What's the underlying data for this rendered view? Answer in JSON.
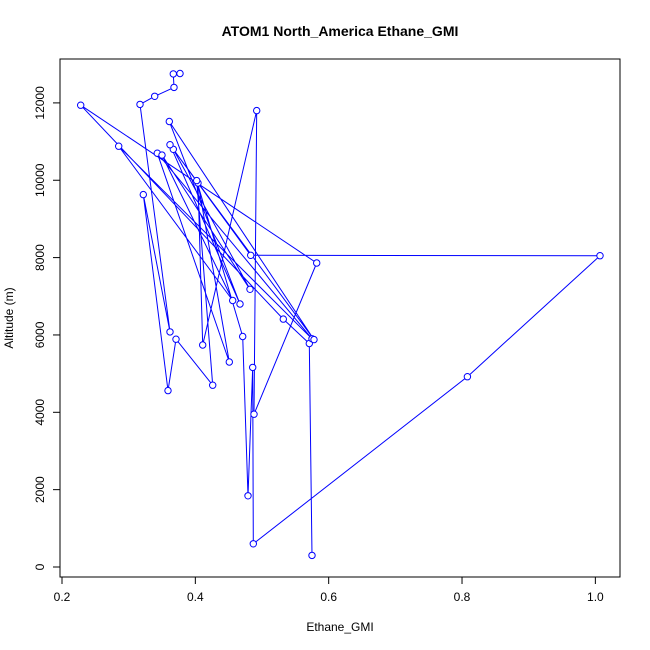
{
  "chart_data": {
    "type": "line",
    "title": "ATOM1 North_America Ethane_GMI",
    "xlabel": "Ethane_GMI",
    "ylabel": "Altitude (m)",
    "xlim": [
      0.2,
      1.0
    ],
    "ylim": [
      0,
      12000
    ],
    "x_ticks": [
      "0.2",
      "0.4",
      "0.6",
      "0.8",
      "1.0"
    ],
    "y_ticks": [
      "0",
      "2000",
      "4000",
      "6000",
      "8000",
      "10000",
      "12000"
    ],
    "grid": false,
    "legend": "none",
    "markers": "open-circle",
    "series": [
      {
        "color": "#0000ff",
        "points": [
          [
            0.575,
            300
          ],
          [
            0.571,
            5780
          ],
          [
            0.532,
            6410
          ],
          [
            0.228,
            11940
          ],
          [
            0.582,
            7860
          ],
          [
            0.488,
            3950
          ],
          [
            0.492,
            11800
          ],
          [
            0.411,
            5740
          ],
          [
            0.404,
            9930
          ],
          [
            0.451,
            5300
          ],
          [
            0.343,
            10700
          ],
          [
            0.575,
            5900
          ],
          [
            0.285,
            10880
          ],
          [
            0.456,
            6890
          ],
          [
            0.35,
            10650
          ],
          [
            0.482,
            7180
          ],
          [
            0.367,
            10800
          ],
          [
            0.578,
            5880
          ],
          [
            0.361,
            11520
          ],
          [
            0.467,
            6800
          ],
          [
            0.362,
            10920
          ],
          [
            0.483,
            8060
          ],
          [
            1.007,
            8050
          ],
          [
            0.808,
            4920
          ],
          [
            0.487,
            600
          ],
          [
            0.486,
            5160
          ],
          [
            0.479,
            1840
          ],
          [
            0.471,
            5960
          ],
          [
            0.402,
            9990
          ],
          [
            0.426,
            4700
          ],
          [
            0.371,
            5890
          ],
          [
            0.359,
            4560
          ],
          [
            0.322,
            9630
          ],
          [
            0.362,
            6080
          ],
          [
            0.317,
            11960
          ],
          [
            0.339,
            12170
          ],
          [
            0.368,
            12400
          ],
          [
            0.367,
            12750
          ],
          [
            0.377,
            12760
          ]
        ]
      }
    ]
  }
}
